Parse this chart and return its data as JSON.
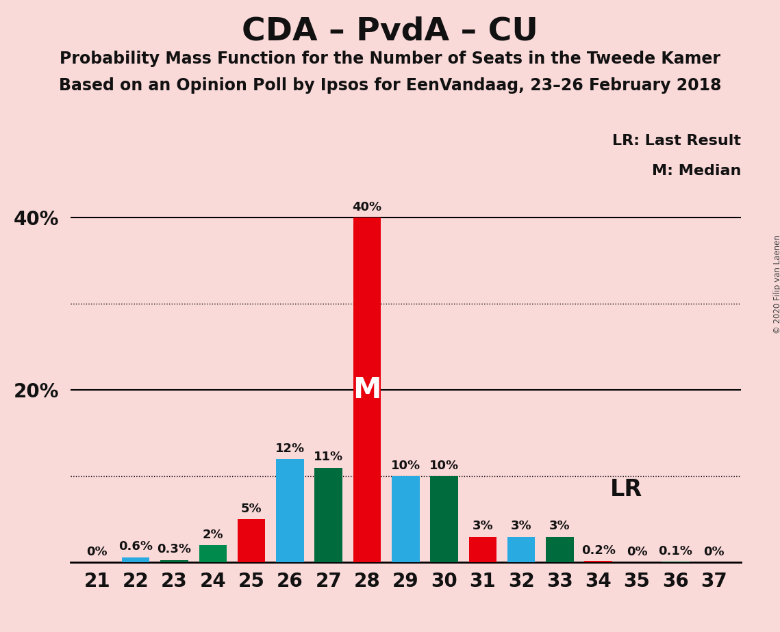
{
  "title": "CDA – PvdA – CU",
  "subtitle1": "Probability Mass Function for the Number of Seats in the Tweede Kamer",
  "subtitle2": "Based on an Opinion Poll by Ipsos for EenVandaag, 23–26 February 2018",
  "copyright": "© 2020 Filip van Laenen",
  "seats": [
    21,
    22,
    23,
    24,
    25,
    26,
    27,
    28,
    29,
    30,
    31,
    32,
    33,
    34,
    35,
    36,
    37
  ],
  "values": [
    0.0,
    0.6,
    0.3,
    2.0,
    5.0,
    12.0,
    11.0,
    40.0,
    10.0,
    10.0,
    3.0,
    3.0,
    3.0,
    0.2,
    0.0,
    0.1,
    0.0
  ],
  "labels": [
    "0%",
    "0.6%",
    "0.3%",
    "2%",
    "5%",
    "12%",
    "11%",
    "40%",
    "10%",
    "10%",
    "3%",
    "3%",
    "3%",
    "0.2%",
    "0%",
    "0.1%",
    "0%"
  ],
  "colors": [
    "#E8000D",
    "#29ABE2",
    "#006B3C",
    "#008B4C",
    "#E8000D",
    "#29ABE2",
    "#006B3C",
    "#E8000D",
    "#29ABE2",
    "#006B3C",
    "#E8000D",
    "#29ABE2",
    "#006B3C",
    "#E8000D",
    "#29ABE2",
    "#006B3C",
    "#E8000D"
  ],
  "background_color": "#FAD9D9",
  "median_seat": 28,
  "ylim_max": 44,
  "dotted_lines": [
    10,
    30
  ],
  "solid_lines": [
    20,
    40
  ],
  "legend_lr": "LR: Last Result",
  "legend_m": "M: Median",
  "title_fontsize": 34,
  "subtitle_fontsize": 17,
  "label_fontsize": 13,
  "axis_fontsize": 20,
  "bar_width": 0.72
}
